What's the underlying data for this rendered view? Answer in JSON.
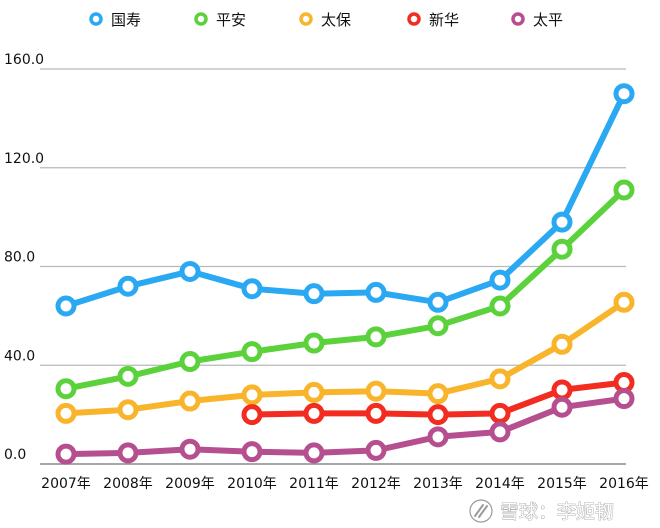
{
  "chart_data": {
    "type": "line",
    "title": "",
    "xlabel": "",
    "ylabel": "",
    "categories": [
      "2007年",
      "2008年",
      "2009年",
      "2010年",
      "2011年",
      "2012年",
      "2013年",
      "2014年",
      "2015年",
      "2016年"
    ],
    "ylim": [
      0,
      160
    ],
    "yticks": [
      "0.0",
      "40.0",
      "80.0",
      "120.0",
      "160.0"
    ],
    "grid": true,
    "legend_position": "top",
    "series": [
      {
        "name": "国寿",
        "color": "#2aa9f2",
        "values": [
          64,
          72,
          78,
          71,
          69,
          69.5,
          65.5,
          74.5,
          98,
          150
        ]
      },
      {
        "name": "平安",
        "color": "#5bd23b",
        "values": [
          30.5,
          35.5,
          41.5,
          45.5,
          49,
          51.5,
          56,
          64,
          87,
          111
        ]
      },
      {
        "name": "太保",
        "color": "#f8b42a",
        "values": [
          20.5,
          22,
          25.5,
          28,
          29,
          29.5,
          28.5,
          34.5,
          48.5,
          65.5
        ]
      },
      {
        "name": "新华",
        "color": "#f22c20",
        "values": [
          null,
          null,
          null,
          20,
          20.5,
          20.5,
          20,
          20.5,
          30,
          33
        ]
      },
      {
        "name": "太平",
        "color": "#b64f8f",
        "values": [
          4,
          4.5,
          6,
          5,
          4.5,
          5.5,
          11,
          13,
          23,
          26.5
        ]
      }
    ]
  },
  "watermark": {
    "text": "雪球：李姬韧",
    "icon": "snowball-logo-icon"
  }
}
